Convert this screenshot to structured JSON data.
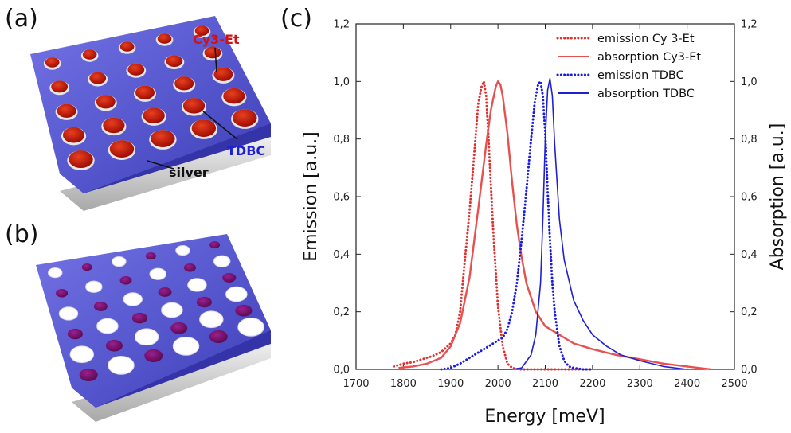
{
  "panels": {
    "a_label": "(a)",
    "b_label": "(b)",
    "c_label": "(c)"
  },
  "scene_a": {
    "label_cy3": "Cy3-Et",
    "label_tdbc": "TDBC",
    "label_silver": "silver",
    "colors": {
      "tdbc": "#5a5ad2",
      "cy3": "#cc1100",
      "silver": "#c8c8c8"
    }
  },
  "scene_b": {
    "colors": {
      "tdbc": "#5a5ad2",
      "dye": "#7a1070",
      "hole": "#ffffff"
    }
  },
  "chart_data": {
    "type": "line",
    "title": "",
    "xlabel": "Energy [meV]",
    "ylabel": "Emission [a.u.]",
    "y2label": "Absorption [a.u.]",
    "xlim": [
      1700,
      2500
    ],
    "ylim": [
      0,
      1.2
    ],
    "y2lim": [
      0,
      1.2
    ],
    "xticks": [
      "1700",
      "1800",
      "1900",
      "2000",
      "2100",
      "2200",
      "2300",
      "2400",
      "2500"
    ],
    "yticks": [
      "0,0",
      "0,2",
      "0,4",
      "0,6",
      "0,8",
      "1,0",
      "1,2"
    ],
    "y2ticks": [
      "0,0",
      "0,2",
      "0,4",
      "0,6",
      "0,8",
      "1,0",
      "1,2"
    ],
    "grid": false,
    "legend_position": "top-right",
    "series": [
      {
        "name": "emission Cy 3-Et",
        "color": "#e03030",
        "style": "dotted",
        "x": [
          1780,
          1800,
          1820,
          1840,
          1860,
          1880,
          1900,
          1910,
          1920,
          1930,
          1940,
          1950,
          1958,
          1965,
          1970,
          1975,
          1980,
          1990,
          2000,
          2010,
          2020,
          2030,
          2045,
          2060,
          2080,
          2100,
          2120,
          2140,
          2160,
          2180,
          2200
        ],
        "y": [
          0.01,
          0.02,
          0.025,
          0.035,
          0.045,
          0.06,
          0.09,
          0.12,
          0.2,
          0.38,
          0.55,
          0.75,
          0.92,
          0.98,
          1.0,
          0.95,
          0.8,
          0.48,
          0.22,
          0.08,
          0.02,
          0.005,
          0.0,
          0.0,
          0.0,
          0.0,
          0.0,
          0.0,
          0.0,
          0.0,
          0.0
        ]
      },
      {
        "name": "absorption Cy3-Et",
        "color": "#e85050",
        "style": "solid",
        "x": [
          1790,
          1820,
          1850,
          1880,
          1900,
          1920,
          1940,
          1960,
          1975,
          1985,
          1995,
          2000,
          2005,
          2010,
          2020,
          2030,
          2040,
          2050,
          2060,
          2080,
          2100,
          2130,
          2160,
          2200,
          2250,
          2300,
          2350,
          2400,
          2450
        ],
        "y": [
          0.005,
          0.01,
          0.02,
          0.04,
          0.08,
          0.16,
          0.32,
          0.58,
          0.78,
          0.9,
          0.98,
          1.0,
          0.99,
          0.95,
          0.82,
          0.65,
          0.5,
          0.39,
          0.3,
          0.2,
          0.15,
          0.12,
          0.09,
          0.07,
          0.05,
          0.035,
          0.02,
          0.01,
          0.0
        ]
      },
      {
        "name": "emission TDBC",
        "color": "#1a1ae0",
        "style": "dotted",
        "x": [
          1880,
          1900,
          1920,
          1940,
          1960,
          1980,
          2000,
          2010,
          2020,
          2030,
          2040,
          2050,
          2060,
          2070,
          2078,
          2085,
          2090,
          2095,
          2100,
          2105,
          2110,
          2115,
          2120,
          2130,
          2140,
          2150,
          2160,
          2180,
          2200
        ],
        "y": [
          0.0,
          0.005,
          0.02,
          0.04,
          0.06,
          0.08,
          0.1,
          0.11,
          0.14,
          0.2,
          0.3,
          0.45,
          0.62,
          0.8,
          0.93,
          0.99,
          1.0,
          0.95,
          0.82,
          0.62,
          0.45,
          0.3,
          0.2,
          0.08,
          0.03,
          0.01,
          0.005,
          0.0,
          0.0
        ]
      },
      {
        "name": "absorption TDBC",
        "color": "#2020d0",
        "style": "solid",
        "x": [
          2000,
          2030,
          2050,
          2070,
          2080,
          2090,
          2095,
          2100,
          2105,
          2110,
          2115,
          2120,
          2130,
          2140,
          2160,
          2180,
          2200,
          2230,
          2260,
          2300,
          2350,
          2400
        ],
        "y": [
          0.0,
          0.0,
          0.005,
          0.05,
          0.12,
          0.3,
          0.52,
          0.8,
          0.97,
          1.01,
          0.95,
          0.78,
          0.52,
          0.38,
          0.24,
          0.17,
          0.12,
          0.08,
          0.05,
          0.03,
          0.01,
          0.0
        ]
      }
    ]
  }
}
